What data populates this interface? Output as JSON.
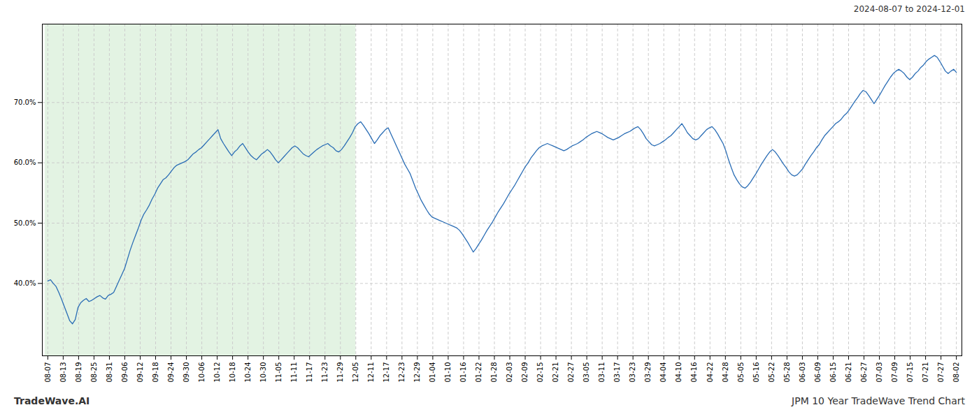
{
  "chart_data": {
    "type": "line",
    "subtitle": "2024-08-07 to 2024-12-01",
    "annotations": [
      "TradeWave.AI",
      "JPM 10 Year TradeWave Trend Chart"
    ],
    "color": "#2a6db5",
    "grid": true,
    "xlim": [
      -2,
      333
    ],
    "ylim": [
      0.28,
      0.83
    ],
    "yticks": [
      {
        "value": 0.4,
        "label": "40.0%"
      },
      {
        "value": 0.5,
        "label": "50.0%"
      },
      {
        "value": 0.6,
        "label": "60.0%"
      },
      {
        "value": 0.7,
        "label": "70.0%"
      }
    ],
    "xticks": [
      {
        "value": 0,
        "label": "08-07"
      },
      {
        "value": 5.6102,
        "label": "08-13"
      },
      {
        "value": 11.2203,
        "label": "08-19"
      },
      {
        "value": 16.8305,
        "label": "08-25"
      },
      {
        "value": 22.4407,
        "label": "08-31"
      },
      {
        "value": 28.0508,
        "label": "09-06"
      },
      {
        "value": 33.661,
        "label": "09-12"
      },
      {
        "value": 39.2712,
        "label": "09-18"
      },
      {
        "value": 44.8814,
        "label": "09-24"
      },
      {
        "value": 50.4915,
        "label": "09-30"
      },
      {
        "value": 56.1017,
        "label": "10-06"
      },
      {
        "value": 61.7119,
        "label": "10-12"
      },
      {
        "value": 67.322,
        "label": "10-18"
      },
      {
        "value": 72.9322,
        "label": "10-24"
      },
      {
        "value": 78.5424,
        "label": "10-30"
      },
      {
        "value": 84.1525,
        "label": "11-05"
      },
      {
        "value": 89.7627,
        "label": "11-11"
      },
      {
        "value": 95.3729,
        "label": "11-17"
      },
      {
        "value": 100.9831,
        "label": "11-23"
      },
      {
        "value": 106.5932,
        "label": "11-29"
      },
      {
        "value": 112.2034,
        "label": "12-05"
      },
      {
        "value": 117.8136,
        "label": "12-11"
      },
      {
        "value": 123.4237,
        "label": "12-17"
      },
      {
        "value": 129.0339,
        "label": "12-23"
      },
      {
        "value": 134.6441,
        "label": "12-29"
      },
      {
        "value": 140.2542,
        "label": "01-04"
      },
      {
        "value": 145.8644,
        "label": "01-10"
      },
      {
        "value": 151.4746,
        "label": "01-16"
      },
      {
        "value": 157.0847,
        "label": "01-22"
      },
      {
        "value": 162.6949,
        "label": "01-28"
      },
      {
        "value": 168.3051,
        "label": "02-03"
      },
      {
        "value": 173.9153,
        "label": "02-09"
      },
      {
        "value": 179.5254,
        "label": "02-15"
      },
      {
        "value": 185.1356,
        "label": "02-21"
      },
      {
        "value": 190.7458,
        "label": "02-27"
      },
      {
        "value": 196.3559,
        "label": "03-05"
      },
      {
        "value": 201.9661,
        "label": "03-11"
      },
      {
        "value": 207.5763,
        "label": "03-17"
      },
      {
        "value": 213.1864,
        "label": "03-23"
      },
      {
        "value": 218.7966,
        "label": "03-29"
      },
      {
        "value": 224.4068,
        "label": "04-04"
      },
      {
        "value": 230.0169,
        "label": "04-10"
      },
      {
        "value": 235.6271,
        "label": "04-16"
      },
      {
        "value": 241.2373,
        "label": "04-22"
      },
      {
        "value": 246.8475,
        "label": "04-28"
      },
      {
        "value": 252.4576,
        "label": "05-05"
      },
      {
        "value": 258.0678,
        "label": "05-16"
      },
      {
        "value": 263.678,
        "label": "05-22"
      },
      {
        "value": 269.2881,
        "label": "05-28"
      },
      {
        "value": 274.8983,
        "label": "06-03"
      },
      {
        "value": 280.5085,
        "label": "06-09"
      },
      {
        "value": 286.1186,
        "label": "06-15"
      },
      {
        "value": 291.7288,
        "label": "06-21"
      },
      {
        "value": 297.339,
        "label": "06-27"
      },
      {
        "value": 302.9492,
        "label": "07-03"
      },
      {
        "value": 308.5593,
        "label": "07-09"
      },
      {
        "value": 314.1695,
        "label": "07-15"
      },
      {
        "value": 319.7797,
        "label": "07-21"
      },
      {
        "value": 325.3898,
        "label": "07-27"
      },
      {
        "value": 331,
        "label": "08-02"
      }
    ],
    "shade": {
      "x": [
        -1,
        112.2034
      ],
      "color": "#d4ecd4"
    },
    "x": [
      0,
      1,
      2,
      3,
      4,
      5,
      6,
      7,
      8,
      9,
      10,
      11,
      12,
      13,
      14,
      15,
      16,
      17,
      18,
      19,
      20,
      21,
      22,
      23,
      24,
      25,
      26,
      27,
      28,
      29,
      30,
      31,
      32,
      33,
      34,
      35,
      36,
      37,
      38,
      39,
      40,
      41,
      42,
      43,
      44,
      45,
      46,
      47,
      48,
      49,
      50,
      51,
      52,
      53,
      54,
      55,
      56,
      57,
      58,
      59,
      60,
      61,
      62,
      63,
      64,
      65,
      66,
      67,
      68,
      69,
      70,
      71,
      72,
      73,
      74,
      75,
      76,
      77,
      78,
      79,
      80,
      81,
      82,
      83,
      84,
      85,
      86,
      87,
      88,
      89,
      90,
      91,
      92,
      93,
      94,
      95,
      96,
      97,
      98,
      99,
      100,
      101,
      102,
      103,
      104,
      105,
      106,
      107,
      108,
      109,
      110,
      111,
      112,
      113,
      114,
      115,
      116,
      117,
      118,
      119,
      120,
      121,
      122,
      123,
      124,
      125,
      126,
      127,
      128,
      129,
      130,
      131,
      132,
      133,
      134,
      135,
      136,
      137,
      138,
      139,
      140,
      141,
      142,
      143,
      144,
      145,
      146,
      147,
      148,
      149,
      150,
      151,
      152,
      153,
      154,
      155,
      156,
      157,
      158,
      159,
      160,
      161,
      162,
      163,
      164,
      165,
      166,
      167,
      168,
      169,
      170,
      171,
      172,
      173,
      174,
      175,
      176,
      177,
      178,
      179,
      180,
      181,
      182,
      183,
      184,
      185,
      186,
      187,
      188,
      189,
      190,
      191,
      192,
      193,
      194,
      195,
      196,
      197,
      198,
      199,
      200,
      201,
      202,
      203,
      204,
      205,
      206,
      207,
      208,
      209,
      210,
      211,
      212,
      213,
      214,
      215,
      216,
      217,
      218,
      219,
      220,
      221,
      222,
      223,
      224,
      225,
      226,
      227,
      228,
      229,
      230,
      231,
      232,
      233,
      234,
      235,
      236,
      237,
      238,
      239,
      240,
      241,
      242,
      243,
      244,
      245,
      246,
      247,
      248,
      249,
      250,
      251,
      252,
      253,
      254,
      255,
      256,
      257,
      258,
      259,
      260,
      261,
      262,
      263,
      264,
      265,
      266,
      267,
      268,
      269,
      270,
      271,
      272,
      273,
      274,
      275,
      276,
      277,
      278,
      279,
      280,
      281,
      282,
      283,
      284,
      285,
      286,
      287,
      288,
      289,
      290,
      291,
      292,
      293,
      294,
      295,
      296,
      297,
      298,
      299,
      300,
      301,
      302,
      303,
      304,
      305,
      306,
      307,
      308,
      309,
      310,
      311,
      312,
      313,
      314,
      315,
      316,
      317,
      318,
      319,
      320,
      321,
      322,
      323,
      324,
      325,
      326,
      327,
      328,
      329,
      330,
      331
    ],
    "values": [
      0.404,
      0.406,
      0.4,
      0.395,
      0.385,
      0.374,
      0.362,
      0.35,
      0.338,
      0.333,
      0.34,
      0.36,
      0.368,
      0.372,
      0.375,
      0.37,
      0.372,
      0.375,
      0.378,
      0.38,
      0.376,
      0.374,
      0.38,
      0.382,
      0.385,
      0.395,
      0.405,
      0.415,
      0.425,
      0.44,
      0.455,
      0.468,
      0.48,
      0.492,
      0.505,
      0.515,
      0.522,
      0.53,
      0.54,
      0.548,
      0.558,
      0.565,
      0.572,
      0.575,
      0.58,
      0.586,
      0.592,
      0.596,
      0.598,
      0.6,
      0.602,
      0.605,
      0.61,
      0.615,
      0.618,
      0.622,
      0.625,
      0.63,
      0.635,
      0.64,
      0.645,
      0.65,
      0.655,
      0.64,
      0.632,
      0.625,
      0.618,
      0.612,
      0.618,
      0.622,
      0.628,
      0.632,
      0.625,
      0.618,
      0.612,
      0.608,
      0.605,
      0.61,
      0.615,
      0.618,
      0.622,
      0.618,
      0.612,
      0.605,
      0.6,
      0.605,
      0.61,
      0.615,
      0.62,
      0.625,
      0.628,
      0.625,
      0.62,
      0.615,
      0.612,
      0.61,
      0.614,
      0.618,
      0.622,
      0.625,
      0.628,
      0.63,
      0.632,
      0.628,
      0.625,
      0.62,
      0.618,
      0.622,
      0.628,
      0.635,
      0.642,
      0.65,
      0.66,
      0.665,
      0.668,
      0.662,
      0.655,
      0.648,
      0.64,
      0.632,
      0.638,
      0.645,
      0.65,
      0.655,
      0.658,
      0.648,
      0.638,
      0.628,
      0.618,
      0.608,
      0.598,
      0.59,
      0.582,
      0.57,
      0.558,
      0.548,
      0.538,
      0.53,
      0.522,
      0.515,
      0.51,
      0.508,
      0.506,
      0.504,
      0.502,
      0.5,
      0.498,
      0.496,
      0.494,
      0.492,
      0.488,
      0.482,
      0.475,
      0.468,
      0.46,
      0.452,
      0.458,
      0.465,
      0.472,
      0.48,
      0.488,
      0.495,
      0.502,
      0.51,
      0.518,
      0.525,
      0.532,
      0.54,
      0.548,
      0.555,
      0.562,
      0.57,
      0.578,
      0.586,
      0.594,
      0.6,
      0.608,
      0.614,
      0.62,
      0.625,
      0.628,
      0.63,
      0.632,
      0.63,
      0.628,
      0.626,
      0.624,
      0.622,
      0.62,
      0.622,
      0.625,
      0.628,
      0.63,
      0.632,
      0.635,
      0.638,
      0.642,
      0.645,
      0.648,
      0.65,
      0.652,
      0.65,
      0.648,
      0.645,
      0.642,
      0.64,
      0.638,
      0.64,
      0.642,
      0.645,
      0.648,
      0.65,
      0.652,
      0.655,
      0.658,
      0.66,
      0.655,
      0.648,
      0.64,
      0.635,
      0.63,
      0.628,
      0.63,
      0.632,
      0.635,
      0.638,
      0.642,
      0.645,
      0.65,
      0.655,
      0.66,
      0.665,
      0.658,
      0.65,
      0.645,
      0.64,
      0.638,
      0.64,
      0.645,
      0.65,
      0.655,
      0.658,
      0.66,
      0.655,
      0.648,
      0.64,
      0.632,
      0.62,
      0.605,
      0.592,
      0.58,
      0.572,
      0.565,
      0.56,
      0.558,
      0.562,
      0.568,
      0.575,
      0.582,
      0.59,
      0.598,
      0.605,
      0.612,
      0.618,
      0.622,
      0.618,
      0.612,
      0.605,
      0.598,
      0.592,
      0.585,
      0.58,
      0.578,
      0.58,
      0.585,
      0.59,
      0.598,
      0.605,
      0.612,
      0.618,
      0.625,
      0.63,
      0.638,
      0.645,
      0.65,
      0.655,
      0.66,
      0.665,
      0.668,
      0.672,
      0.678,
      0.682,
      0.688,
      0.695,
      0.702,
      0.708,
      0.715,
      0.72,
      0.718,
      0.712,
      0.705,
      0.698,
      0.705,
      0.712,
      0.72,
      0.728,
      0.735,
      0.742,
      0.748,
      0.752,
      0.755,
      0.752,
      0.748,
      0.742,
      0.738,
      0.742,
      0.748,
      0.752,
      0.758,
      0.762,
      0.768,
      0.772,
      0.775,
      0.778,
      0.775,
      0.768,
      0.76,
      0.752,
      0.748,
      0.752,
      0.755,
      0.75
    ]
  }
}
